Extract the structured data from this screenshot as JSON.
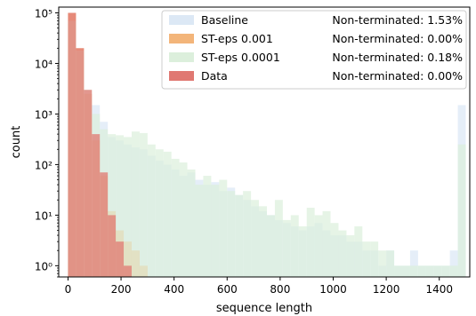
{
  "chart_data": {
    "type": "histogram",
    "xlabel": "sequence length",
    "ylabel": "count",
    "yscale": "log",
    "xlim": [
      -35,
      1515
    ],
    "ylim": [
      0.6,
      130000
    ],
    "bin_width": 30,
    "x_ticks": [
      0,
      200,
      400,
      600,
      800,
      1000,
      1200,
      1400
    ],
    "y_ticks": [
      {
        "value": 1,
        "label": "10⁰"
      },
      {
        "value": 10,
        "label": "10¹"
      },
      {
        "value": 100,
        "label": "10²"
      },
      {
        "value": 1000,
        "label": "10³"
      },
      {
        "value": 10000,
        "label": "10⁴"
      },
      {
        "value": 100000,
        "label": "10⁵"
      }
    ],
    "legend_position": "top-right",
    "series": [
      {
        "name": "Baseline",
        "label": "Non-terminated: 1.53%",
        "color": "#dce8f5",
        "bins": [
          [
            0,
            60000
          ],
          [
            30,
            15000
          ],
          [
            60,
            2000
          ],
          [
            90,
            1500
          ],
          [
            120,
            700
          ],
          [
            150,
            350
          ],
          [
            180,
            300
          ],
          [
            210,
            250
          ],
          [
            240,
            220
          ],
          [
            270,
            200
          ],
          [
            300,
            150
          ],
          [
            330,
            120
          ],
          [
            360,
            100
          ],
          [
            390,
            80
          ],
          [
            420,
            60
          ],
          [
            450,
            70
          ],
          [
            480,
            50
          ],
          [
            510,
            40
          ],
          [
            540,
            45
          ],
          [
            570,
            30
          ],
          [
            600,
            35
          ],
          [
            630,
            25
          ],
          [
            660,
            20
          ],
          [
            690,
            15
          ],
          [
            720,
            12
          ],
          [
            750,
            10
          ],
          [
            780,
            8
          ],
          [
            810,
            7
          ],
          [
            840,
            6
          ],
          [
            870,
            5
          ],
          [
            900,
            6
          ],
          [
            930,
            7
          ],
          [
            960,
            5
          ],
          [
            990,
            4
          ],
          [
            1020,
            4
          ],
          [
            1050,
            3
          ],
          [
            1080,
            3
          ],
          [
            1110,
            2
          ],
          [
            1140,
            2
          ],
          [
            1170,
            1
          ],
          [
            1200,
            2
          ],
          [
            1230,
            1
          ],
          [
            1260,
            1
          ],
          [
            1290,
            2
          ],
          [
            1320,
            1
          ],
          [
            1350,
            1
          ],
          [
            1380,
            1
          ],
          [
            1410,
            1
          ],
          [
            1440,
            2
          ],
          [
            1470,
            1500
          ]
        ]
      },
      {
        "name": "ST-eps 0.001",
        "label": "Non-terminated: 0.00%",
        "color": "#f3b57a",
        "bins": [
          [
            0,
            100000
          ],
          [
            30,
            20000
          ],
          [
            60,
            2500
          ],
          [
            90,
            300
          ],
          [
            120,
            60
          ],
          [
            150,
            12
          ],
          [
            180,
            5
          ],
          [
            210,
            3
          ],
          [
            240,
            2
          ],
          [
            270,
            1
          ]
        ]
      },
      {
        "name": "ST-eps 0.0001",
        "label": "Non-terminated: 0.18%",
        "color": "#dcefdc",
        "bins": [
          [
            0,
            70000
          ],
          [
            30,
            18000
          ],
          [
            60,
            3000
          ],
          [
            90,
            1000
          ],
          [
            120,
            500
          ],
          [
            150,
            400
          ],
          [
            180,
            380
          ],
          [
            210,
            350
          ],
          [
            240,
            450
          ],
          [
            270,
            420
          ],
          [
            300,
            250
          ],
          [
            330,
            200
          ],
          [
            360,
            180
          ],
          [
            390,
            130
          ],
          [
            420,
            110
          ],
          [
            450,
            80
          ],
          [
            480,
            40
          ],
          [
            510,
            60
          ],
          [
            540,
            40
          ],
          [
            570,
            50
          ],
          [
            600,
            30
          ],
          [
            630,
            25
          ],
          [
            660,
            30
          ],
          [
            690,
            20
          ],
          [
            720,
            15
          ],
          [
            750,
            10
          ],
          [
            780,
            20
          ],
          [
            810,
            8
          ],
          [
            840,
            10
          ],
          [
            870,
            6
          ],
          [
            900,
            14
          ],
          [
            930,
            10
          ],
          [
            960,
            12
          ],
          [
            990,
            7
          ],
          [
            1020,
            5
          ],
          [
            1050,
            4
          ],
          [
            1080,
            6
          ],
          [
            1110,
            3
          ],
          [
            1140,
            3
          ],
          [
            1170,
            2
          ],
          [
            1200,
            2
          ],
          [
            1230,
            1
          ],
          [
            1260,
            1
          ],
          [
            1290,
            1
          ],
          [
            1320,
            1
          ],
          [
            1350,
            1
          ],
          [
            1380,
            1
          ],
          [
            1410,
            1
          ],
          [
            1440,
            1
          ],
          [
            1470,
            250
          ]
        ]
      },
      {
        "name": "Data",
        "label": "Non-terminated: 0.00%",
        "color": "#e07872",
        "bins": [
          [
            0,
            100000
          ],
          [
            30,
            20000
          ],
          [
            60,
            3000
          ],
          [
            90,
            400
          ],
          [
            120,
            70
          ],
          [
            150,
            10
          ],
          [
            180,
            3
          ],
          [
            210,
            1
          ]
        ]
      }
    ]
  }
}
